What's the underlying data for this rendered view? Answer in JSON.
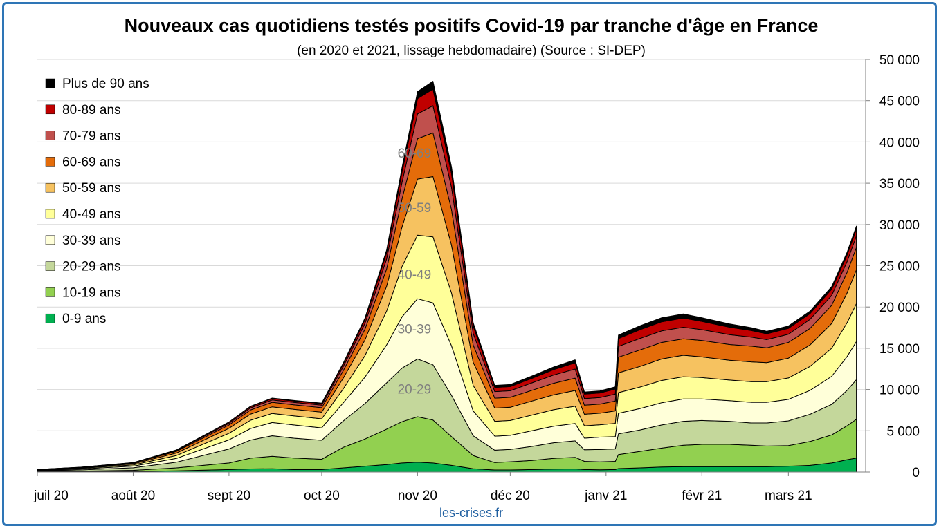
{
  "chart_data": {
    "type": "area",
    "stacked": true,
    "title": "Nouveaux cas quotidiens testés positifs Covid-19 par tranche d'âge en France",
    "subtitle": "(en 2020 et 2021, lissage hebdomadaire) (Source : SI-DEP)",
    "source_credit": "les-crises.fr",
    "x_tick_labels": [
      "juil 20",
      "août 20",
      "sept 20",
      "oct 20",
      "nov 20",
      "déc 20",
      "janv 21",
      "févr 21",
      "mars 21"
    ],
    "x_tick_dates": [
      "2020-07-01",
      "2020-08-01",
      "2020-09-01",
      "2020-10-01",
      "2020-11-01",
      "2020-12-01",
      "2021-01-01",
      "2021-02-01",
      "2021-03-01"
    ],
    "y_axis_side": "right",
    "ylim": [
      0,
      50000
    ],
    "y_ticks": [
      0,
      5000,
      10000,
      15000,
      20000,
      25000,
      30000,
      35000,
      40000,
      45000,
      50000
    ],
    "y_tick_labels": [
      "0",
      "5 000",
      "10 000",
      "15 000",
      "20 000",
      "25 000",
      "30 000",
      "35 000",
      "40 000",
      "45 000",
      "50 000"
    ],
    "grid": "horizontal",
    "legend_position": "top-left",
    "x": [
      "2020-07-01",
      "2020-07-15",
      "2020-08-01",
      "2020-08-15",
      "2020-09-01",
      "2020-09-08",
      "2020-09-15",
      "2020-09-22",
      "2020-10-01",
      "2020-10-08",
      "2020-10-15",
      "2020-10-22",
      "2020-10-27",
      "2020-11-01",
      "2020-11-06",
      "2020-11-12",
      "2020-11-19",
      "2020-11-26",
      "2020-12-01",
      "2020-12-08",
      "2020-12-15",
      "2020-12-22",
      "2020-12-25",
      "2020-12-30",
      "2021-01-04",
      "2021-01-05",
      "2021-01-12",
      "2021-01-19",
      "2021-01-26",
      "2021-02-01",
      "2021-02-10",
      "2021-02-17",
      "2021-02-22",
      "2021-03-01",
      "2021-03-08",
      "2021-03-15",
      "2021-03-20",
      "2021-03-23"
    ],
    "series": [
      {
        "name": "0-9 ans",
        "color": "#00b050",
        "values": [
          20,
          30,
          60,
          150,
          300,
          380,
          400,
          300,
          300,
          500,
          700,
          900,
          1100,
          1200,
          1100,
          800,
          400,
          250,
          250,
          300,
          350,
          380,
          300,
          280,
          300,
          420,
          500,
          600,
          650,
          650,
          650,
          650,
          650,
          700,
          800,
          1100,
          1500,
          1700
        ]
      },
      {
        "name": "10-19 ans",
        "color": "#92d050",
        "values": [
          50,
          80,
          150,
          350,
          800,
          1300,
          1500,
          1400,
          1250,
          2500,
          3300,
          4300,
          5000,
          5500,
          5200,
          3500,
          1600,
          900,
          1000,
          1100,
          1300,
          1400,
          1000,
          950,
          1000,
          1700,
          2000,
          2300,
          2600,
          2700,
          2700,
          2600,
          2500,
          2500,
          2900,
          3400,
          4100,
          4700
        ]
      },
      {
        "name": "20-29 ans",
        "color": "#c4d79b",
        "values": [
          80,
          150,
          300,
          700,
          1700,
          2200,
          2500,
          2400,
          2300,
          3200,
          4300,
          5600,
          6500,
          7000,
          6700,
          5000,
          2400,
          1500,
          1500,
          1700,
          1900,
          2000,
          1400,
          1500,
          1500,
          2500,
          2600,
          2800,
          2900,
          2900,
          2800,
          2700,
          2800,
          3000,
          3300,
          3700,
          4300,
          4800
        ]
      },
      {
        "name": "30-39 ans",
        "color": "#ffffd9",
        "values": [
          60,
          110,
          200,
          450,
          1100,
          1400,
          1600,
          1600,
          1500,
          2200,
          3200,
          4600,
          6200,
          7300,
          7500,
          6000,
          3000,
          1700,
          1700,
          1900,
          2000,
          2100,
          1400,
          1500,
          1500,
          2500,
          2600,
          2700,
          2700,
          2600,
          2500,
          2500,
          2500,
          2600,
          2900,
          3400,
          4100,
          4600
        ]
      },
      {
        "name": "40-49 ans",
        "color": "#ffff99",
        "values": [
          40,
          80,
          150,
          350,
          800,
          1000,
          1100,
          1100,
          1100,
          1700,
          2600,
          4100,
          6100,
          7700,
          8000,
          6400,
          3100,
          1800,
          1800,
          1900,
          2000,
          2100,
          1500,
          1500,
          1600,
          2500,
          2600,
          2700,
          2700,
          2600,
          2500,
          2500,
          2500,
          2600,
          2900,
          3400,
          4100,
          4600
        ]
      },
      {
        "name": "50-59 ans",
        "color": "#f6c260",
        "values": [
          30,
          60,
          120,
          300,
          600,
          750,
          800,
          800,
          800,
          1300,
          1900,
          3000,
          4800,
          6800,
          7300,
          5800,
          2800,
          1600,
          1600,
          1700,
          1800,
          1900,
          1400,
          1400,
          1500,
          2400,
          2500,
          2600,
          2600,
          2500,
          2400,
          2400,
          2300,
          2400,
          2600,
          3000,
          3600,
          4100
        ]
      },
      {
        "name": "60-69 ans",
        "color": "#e46c0a",
        "values": [
          20,
          40,
          80,
          200,
          400,
          500,
          550,
          550,
          550,
          900,
          1300,
          2100,
          3400,
          4900,
          5300,
          4300,
          2100,
          1200,
          1200,
          1300,
          1400,
          1500,
          1100,
          1100,
          1200,
          1900,
          2000,
          2000,
          2000,
          2000,
          1900,
          1900,
          1800,
          1900,
          2000,
          2200,
          2500,
          2700
        ]
      },
      {
        "name": "70-79 ans",
        "color": "#c0504d",
        "values": [
          10,
          20,
          50,
          100,
          200,
          250,
          280,
          280,
          300,
          500,
          700,
          1200,
          2000,
          3000,
          3300,
          2700,
          1400,
          800,
          800,
          900,
          1000,
          1100,
          800,
          800,
          850,
          1300,
          1400,
          1400,
          1400,
          1300,
          1200,
          1100,
          1000,
          1000,
          1100,
          1200,
          1300,
          1400
        ]
      },
      {
        "name": "80-89 ans",
        "color": "#c00000",
        "values": [
          5,
          10,
          30,
          60,
          120,
          150,
          170,
          180,
          180,
          300,
          450,
          750,
          1250,
          1850,
          2000,
          1700,
          900,
          500,
          500,
          550,
          650,
          750,
          550,
          550,
          600,
          950,
          1050,
          1100,
          1100,
          1000,
          900,
          800,
          700,
          700,
          700,
          750,
          800,
          850
        ]
      },
      {
        "name": "Plus de 90 ans",
        "color": "#000000",
        "values": [
          3,
          5,
          10,
          20,
          40,
          50,
          60,
          70,
          80,
          130,
          200,
          350,
          550,
          850,
          950,
          800,
          400,
          250,
          250,
          280,
          320,
          370,
          250,
          250,
          280,
          430,
          480,
          500,
          500,
          450,
          400,
          350,
          300,
          300,
          300,
          320,
          340,
          350
        ]
      }
    ],
    "band_labels": [
      {
        "text": "60-69",
        "date": "2020-10-31",
        "value": 38100
      },
      {
        "text": "50-59",
        "date": "2020-10-31",
        "value": 31500
      },
      {
        "text": "40-49",
        "date": "2020-10-31",
        "value": 23400
      },
      {
        "text": "30-39",
        "date": "2020-10-31",
        "value": 16800
      },
      {
        "text": "20-29",
        "date": "2020-10-31",
        "value": 9500
      }
    ]
  }
}
